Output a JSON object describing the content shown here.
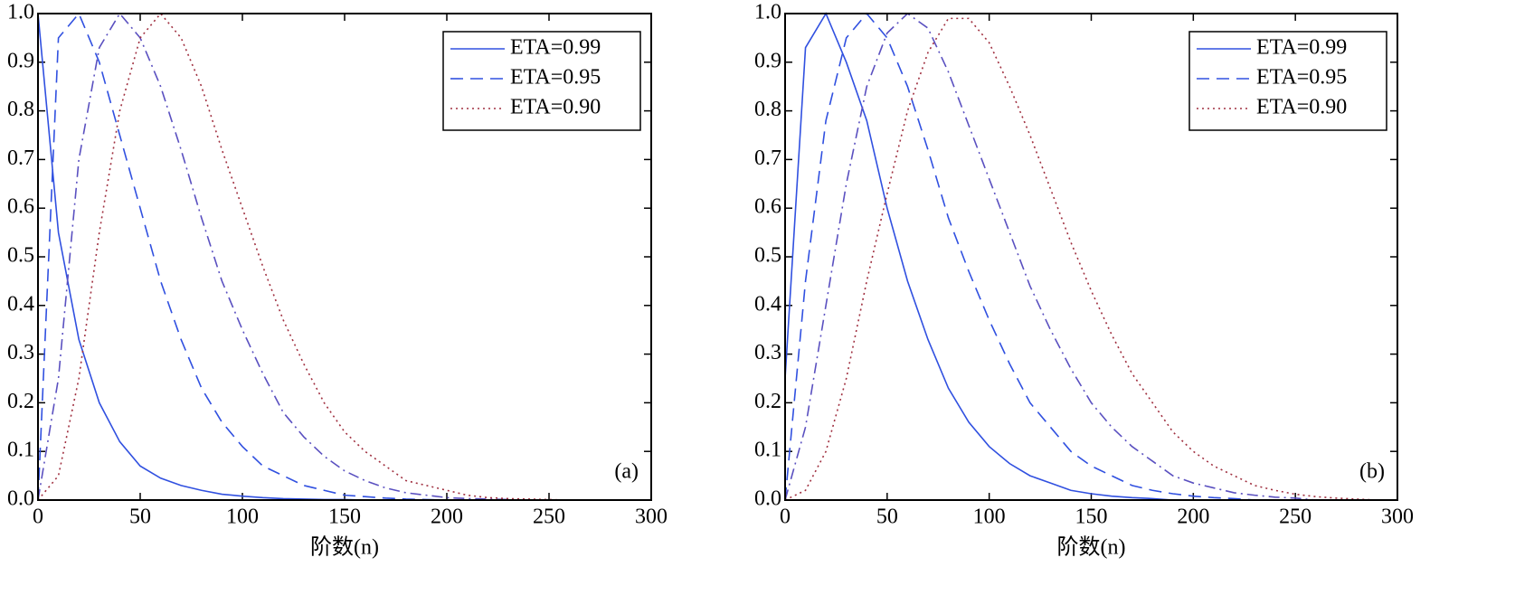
{
  "chart_data": [
    {
      "type": "line",
      "xlabel": "阶数(n)",
      "annotation": "(a)",
      "x": [
        0,
        10,
        20,
        30,
        40,
        50,
        60,
        70,
        80,
        90,
        100,
        110,
        120,
        130,
        140,
        150,
        160,
        170,
        180,
        190,
        200,
        210,
        220,
        230,
        240,
        250,
        260,
        270,
        280,
        290,
        300
      ],
      "xlim": [
        0,
        300
      ],
      "xticks": [
        0,
        50,
        100,
        150,
        200,
        250,
        300
      ],
      "ylim": [
        0,
        1
      ],
      "yticks": [
        {
          "value": 0,
          "label": "0.0"
        },
        0.1,
        0.2,
        0.3,
        0.4,
        0.5,
        0.6,
        0.7,
        0.8,
        0.9,
        {
          "value": 1,
          "label": "1.0"
        }
      ],
      "legend": "upper right",
      "series": [
        {
          "name": "ETA=0.99",
          "color": "#3050e0",
          "dash": "solid",
          "values": [
            1.0,
            0.55,
            0.33,
            0.2,
            0.12,
            0.07,
            0.045,
            0.03,
            0.02,
            0.012,
            0.008,
            0.005,
            0.003,
            0.002,
            0.001,
            0.001,
            0,
            0,
            0,
            0,
            0,
            0,
            0,
            0,
            0,
            0,
            0,
            0,
            0,
            0,
            0
          ]
        },
        {
          "name": "ETA=0.95",
          "color": "#3050e0",
          "dash": "dashed",
          "values": [
            0,
            0.95,
            1.0,
            0.9,
            0.75,
            0.6,
            0.45,
            0.33,
            0.23,
            0.16,
            0.11,
            0.07,
            0.05,
            0.03,
            0.02,
            0.01,
            0.007,
            0.004,
            0.002,
            0.001,
            0,
            0,
            0,
            0,
            0,
            0,
            0,
            0,
            0,
            0,
            0
          ]
        },
        {
          "color": "#5a50c0",
          "dash": "dashdot",
          "values": [
            0,
            0.25,
            0.7,
            0.93,
            1.0,
            0.95,
            0.85,
            0.72,
            0.58,
            0.45,
            0.35,
            0.26,
            0.18,
            0.13,
            0.09,
            0.06,
            0.04,
            0.025,
            0.015,
            0.01,
            0.005,
            0.003,
            0.002,
            0.001,
            0,
            0,
            0,
            0,
            0,
            0,
            0
          ]
        },
        {
          "name": "ETA=0.90",
          "color": "#a03040",
          "dash": "dotted",
          "values": [
            0,
            0.05,
            0.25,
            0.55,
            0.8,
            0.95,
            1.0,
            0.95,
            0.85,
            0.72,
            0.6,
            0.48,
            0.37,
            0.28,
            0.2,
            0.14,
            0.1,
            0.07,
            0.04,
            0.03,
            0.02,
            0.01,
            0.005,
            0.003,
            0.002,
            0.001,
            0,
            0,
            0,
            0,
            0
          ]
        }
      ]
    },
    {
      "type": "line",
      "xlabel": "阶数(n)",
      "annotation": "(b)",
      "x": [
        0,
        10,
        20,
        30,
        40,
        50,
        60,
        70,
        80,
        90,
        100,
        110,
        120,
        130,
        140,
        150,
        160,
        170,
        180,
        190,
        200,
        210,
        220,
        230,
        240,
        250,
        260,
        270,
        280,
        290,
        300
      ],
      "xlim": [
        0,
        300
      ],
      "xticks": [
        0,
        50,
        100,
        150,
        200,
        250,
        300
      ],
      "ylim": [
        0,
        1
      ],
      "yticks": [
        {
          "value": 0,
          "label": "0.0"
        },
        0.1,
        0.2,
        0.3,
        0.4,
        0.5,
        0.6,
        0.7,
        0.8,
        0.9,
        {
          "value": 1,
          "label": "1.0"
        }
      ],
      "legend": "upper right",
      "series": [
        {
          "name": "ETA=0.99",
          "color": "#3050e0",
          "dash": "solid",
          "values": [
            0.25,
            0.93,
            1.0,
            0.9,
            0.78,
            0.6,
            0.45,
            0.33,
            0.23,
            0.16,
            0.11,
            0.075,
            0.05,
            0.035,
            0.02,
            0.013,
            0.008,
            0.005,
            0.003,
            0,
            0,
            0,
            0,
            0,
            0,
            0,
            0,
            0,
            0,
            0,
            0
          ]
        },
        {
          "name": "ETA=0.95",
          "color": "#3050e0",
          "dash": "dashed",
          "values": [
            0,
            0.45,
            0.78,
            0.95,
            1.0,
            0.95,
            0.85,
            0.72,
            0.58,
            0.47,
            0.37,
            0.28,
            0.2,
            0.15,
            0.1,
            0.07,
            0.05,
            0.03,
            0.02,
            0.013,
            0.008,
            0.005,
            0.003,
            0,
            0,
            0,
            0,
            0,
            0,
            0,
            0
          ]
        },
        {
          "color": "#5a50c0",
          "dash": "dashdot",
          "values": [
            0,
            0.15,
            0.4,
            0.65,
            0.85,
            0.96,
            1.0,
            0.97,
            0.88,
            0.77,
            0.66,
            0.55,
            0.44,
            0.35,
            0.27,
            0.2,
            0.15,
            0.11,
            0.08,
            0.05,
            0.035,
            0.025,
            0.015,
            0.01,
            0.006,
            0.004,
            0,
            0,
            0,
            0,
            0
          ]
        },
        {
          "name": "ETA=0.90",
          "color": "#a03040",
          "dash": "dotted",
          "values": [
            0,
            0.02,
            0.1,
            0.25,
            0.45,
            0.63,
            0.8,
            0.92,
            0.99,
            0.99,
            0.94,
            0.85,
            0.75,
            0.64,
            0.53,
            0.43,
            0.34,
            0.26,
            0.2,
            0.14,
            0.1,
            0.07,
            0.05,
            0.03,
            0.02,
            0.012,
            0.007,
            0.004,
            0.002,
            0,
            0
          ]
        }
      ]
    }
  ]
}
